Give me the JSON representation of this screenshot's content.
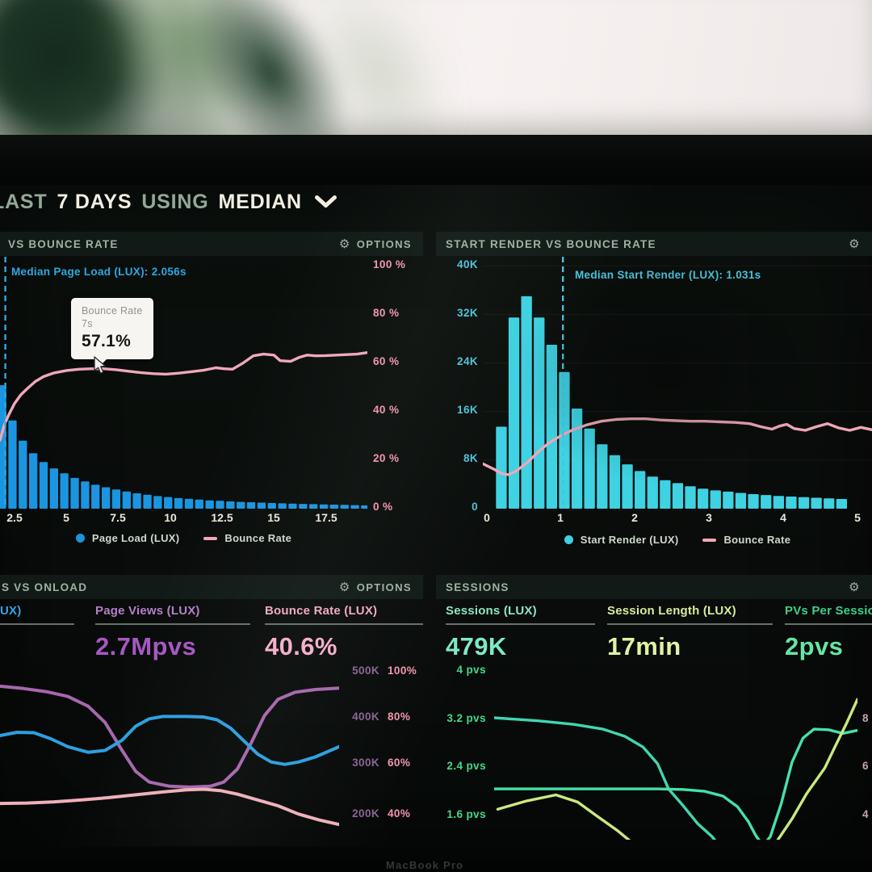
{
  "toolbar": {
    "prefix": "LAST",
    "range": "7 DAYS",
    "using": "USING",
    "metric": "MEDIAN"
  },
  "device": {
    "brand": "MacBook Pro"
  },
  "colors": {
    "screen_bg": "#0a0e0c",
    "strip_bg": "#121a17",
    "sage": "#9db2a3",
    "cream": "#f2eee2",
    "blue_bars": "#1b95e0",
    "cyan_bars": "#3ed2e2",
    "pink_line": "#f0a8ba",
    "blue_annotation": "#2ea7e0",
    "cyan_annotation": "#49c4dc",
    "blue_tab": "#35a3e8",
    "purple_label": "#b57fca",
    "purple_value": "#a757c4",
    "pink_label": "#f3a8c2",
    "pink_value": "#f6aecb",
    "mint_label": "#8de5c2",
    "mint_value": "#7fe9c4",
    "lime_label": "#d6eb9e",
    "lime_value": "#e3f2a4",
    "green_label": "#3ecf8a",
    "green_value": "#66e5a3",
    "pink_axis": "#f295ae",
    "cyan_axis": "#4fc3d8",
    "purple_axis": "#8a6596",
    "green_axis": "#45d988",
    "tick": "#ece7da",
    "legend_text": "#cfd8cf",
    "partial_axis": "#caa0a8"
  },
  "panels": {
    "page_load": {
      "title": "VS BOUNCE RATE",
      "options": "OPTIONS",
      "median_annotation": "Median Page Load (LUX): 2.056s",
      "tooltip": {
        "label": "Bounce Rate",
        "sub": "7s",
        "value": "57.1%"
      },
      "y_right": [
        "100 %",
        "80 %",
        "60 %",
        "40 %",
        "20 %",
        "0 %"
      ],
      "x_ticks": [
        "2.5",
        "5",
        "7.5",
        "10",
        "12.5",
        "15",
        "17.5"
      ],
      "legend": [
        {
          "label": "Page Load (LUX)",
          "color": "#1b95e0"
        },
        {
          "label": "Bounce Rate",
          "color": "#f0a8ba"
        }
      ]
    },
    "start_render": {
      "title": "START RENDER VS BOUNCE RATE",
      "median_annotation": "Median Start Render (LUX): 1.031s",
      "y_left": [
        "40K",
        "32K",
        "24K",
        "16K",
        "8K",
        "0"
      ],
      "x_ticks": [
        "0",
        "1",
        "2",
        "3",
        "4",
        "5"
      ],
      "legend": [
        {
          "label": "Start Render (LUX)",
          "color": "#3ed2e2"
        },
        {
          "label": "Bounce Rate",
          "color": "#efa7b8"
        }
      ]
    },
    "onload": {
      "title": "S VS ONLOAD",
      "options": "OPTIONS",
      "stats": [
        {
          "label": "UX)",
          "value": ""
        },
        {
          "label": "Page Views (LUX)",
          "value": "2.7Mpvs"
        },
        {
          "label": "Bounce Rate (LUX)",
          "value": "40.6%"
        }
      ],
      "y_left": [
        "500K",
        "400K",
        "300K",
        "200K"
      ],
      "y_right": [
        "100%",
        "80%",
        "60%",
        "40%"
      ]
    },
    "sessions": {
      "title": "SESSIONS",
      "stats": [
        {
          "label": "Sessions (LUX)",
          "value": "479K"
        },
        {
          "label": "Session Length (LUX)",
          "value": "17min"
        },
        {
          "label": "PVs Per Sessio",
          "value": "2pvs"
        }
      ],
      "y_left": [
        "4 pvs",
        "3.2 pvs",
        "2.4 pvs",
        "1.6 pvs"
      ],
      "y_right_partial": [
        "8",
        "6",
        "4"
      ]
    }
  },
  "chart_data": [
    {
      "id": "page-load-hist",
      "type": "bar+line",
      "title": "VS BOUNCE RATE",
      "x_range": [
        1.8,
        19.5
      ],
      "x_ticks": [
        2.5,
        5,
        7.5,
        10,
        12.5,
        15,
        17.5
      ],
      "bars": {
        "name": "Page Load (LUX)",
        "color": "#1b95e0",
        "x_start": 1.9,
        "x_step": 0.5,
        "bar_width": 0.4,
        "y_range": [
          0,
          1
        ],
        "values": [
          0.49,
          0.35,
          0.27,
          0.22,
          0.185,
          0.16,
          0.14,
          0.122,
          0.108,
          0.095,
          0.085,
          0.076,
          0.068,
          0.061,
          0.055,
          0.05,
          0.046,
          0.042,
          0.039,
          0.036,
          0.033,
          0.031,
          0.029,
          0.027,
          0.0255,
          0.024,
          0.0225,
          0.021,
          0.02,
          0.019,
          0.018,
          0.017,
          0.016,
          0.015,
          0.014,
          0.013
        ]
      },
      "lines": [
        {
          "name": "Bounce Rate",
          "color": "#f0a8ba",
          "width": 3.4,
          "y_range": [
            0,
            103
          ],
          "unit": "%",
          "points": [
            [
              1.8,
              28
            ],
            [
              2.0,
              34
            ],
            [
              2.2,
              38
            ],
            [
              2.5,
              43
            ],
            [
              2.8,
              46.5
            ],
            [
              3.1,
              49
            ],
            [
              3.5,
              52
            ],
            [
              3.9,
              54
            ],
            [
              4.4,
              55.5
            ],
            [
              5,
              56.5
            ],
            [
              5.6,
              57
            ],
            [
              6.2,
              57.2
            ],
            [
              6.8,
              57.2
            ],
            [
              7.4,
              56.8
            ],
            [
              8,
              56.2
            ],
            [
              8.6,
              55.6
            ],
            [
              9.2,
              55.2
            ],
            [
              9.8,
              55
            ],
            [
              10.4,
              55.4
            ],
            [
              11,
              56
            ],
            [
              11.6,
              56.6
            ],
            [
              12.2,
              57.6
            ],
            [
              12.6,
              57.2
            ],
            [
              13,
              57
            ],
            [
              13.5,
              59.5
            ],
            [
              14,
              62.5
            ],
            [
              14.5,
              63.2
            ],
            [
              15,
              62.8
            ],
            [
              15.3,
              60.5
            ],
            [
              15.8,
              60.2
            ],
            [
              16.2,
              61.8
            ],
            [
              16.6,
              62.8
            ],
            [
              17,
              62.5
            ],
            [
              17.5,
              62.6
            ],
            [
              18,
              62.8
            ],
            [
              18.5,
              63
            ],
            [
              19,
              63.2
            ],
            [
              19.5,
              63.8
            ]
          ]
        }
      ],
      "vline": {
        "x": 2.056,
        "color": "#2ea7e0"
      },
      "tooltip_point": {
        "x_seconds": 7,
        "bounce_rate_pct": 57.1
      }
    },
    {
      "id": "start-render-hist",
      "type": "bar+line",
      "title": "START RENDER VS BOUNCE RATE",
      "x_range": [
        -0.05,
        5.2
      ],
      "x_ticks": [
        0,
        1,
        2,
        3,
        4,
        5
      ],
      "hgrid": {
        "values": [
          8,
          16,
          24,
          32,
          40
        ],
        "y_range": [
          0,
          41.5
        ],
        "color": "rgba(160,185,175,0.08)"
      },
      "bars": {
        "name": "Start Render (LUX)",
        "color": "#3ed2e2",
        "x_start": 0.2,
        "x_step": 0.17,
        "bar_width": 0.145,
        "y_range": [
          0,
          41.5
        ],
        "unit": "K sessions",
        "values": [
          13.5,
          31.5,
          35,
          31.5,
          27,
          22.5,
          16.5,
          13.2,
          10.6,
          8.8,
          7.3,
          6.2,
          5.3,
          4.7,
          4.2,
          3.7,
          3.3,
          3.0,
          2.8,
          2.6,
          2.4,
          2.25,
          2.1,
          2.0,
          1.9,
          1.8,
          1.7,
          1.6
        ]
      },
      "lines": [
        {
          "name": "Bounce Rate",
          "color": "#efa7b8",
          "width": 3.4,
          "y_range": [
            0,
            41.5
          ],
          "points": [
            [
              -0.05,
              7.4
            ],
            [
              0.1,
              6.5
            ],
            [
              0.2,
              5.8
            ],
            [
              0.3,
              5.6
            ],
            [
              0.4,
              6.2
            ],
            [
              0.55,
              7.6
            ],
            [
              0.7,
              9.4
            ],
            [
              0.85,
              10.9
            ],
            [
              1.0,
              12.0
            ],
            [
              1.15,
              12.9
            ],
            [
              1.35,
              13.8
            ],
            [
              1.55,
              14.4
            ],
            [
              1.75,
              14.7
            ],
            [
              1.95,
              14.8
            ],
            [
              2.15,
              14.8
            ],
            [
              2.35,
              14.6
            ],
            [
              2.55,
              14.5
            ],
            [
              2.75,
              14.4
            ],
            [
              2.95,
              14.4
            ],
            [
              3.15,
              14.3
            ],
            [
              3.35,
              14.2
            ],
            [
              3.55,
              14.0
            ],
            [
              3.7,
              13.5
            ],
            [
              3.85,
              13.1
            ],
            [
              3.95,
              13.6
            ],
            [
              4.05,
              13.9
            ],
            [
              4.15,
              13.2
            ],
            [
              4.3,
              12.9
            ],
            [
              4.45,
              13.5
            ],
            [
              4.6,
              14.0
            ],
            [
              4.75,
              13.3
            ],
            [
              4.9,
              12.9
            ],
            [
              5.05,
              13.4
            ],
            [
              5.2,
              13.0
            ]
          ]
        }
      ],
      "vline": {
        "x": 1.031,
        "color": "#49c4dc"
      }
    },
    {
      "id": "onload-lines",
      "type": "line",
      "title": "S VS ONLOAD",
      "x_range": [
        0,
        1
      ],
      "lines": [
        {
          "name": "Page Views (LUX)",
          "color": "#a767ad",
          "width": 4,
          "y_range": [
            138,
            520
          ],
          "unit": "K",
          "points": [
            [
              0,
              468
            ],
            [
              0.07,
              463
            ],
            [
              0.14,
              456
            ],
            [
              0.2,
              446
            ],
            [
              0.26,
              425
            ],
            [
              0.31,
              390
            ],
            [
              0.36,
              330
            ],
            [
              0.4,
              285
            ],
            [
              0.44,
              262
            ],
            [
              0.5,
              253
            ],
            [
              0.56,
              251
            ],
            [
              0.62,
              253
            ],
            [
              0.66,
              262
            ],
            [
              0.7,
              290
            ],
            [
              0.74,
              345
            ],
            [
              0.78,
              405
            ],
            [
              0.82,
              440
            ],
            [
              0.87,
              455
            ],
            [
              0.93,
              461
            ],
            [
              1,
              464
            ]
          ]
        },
        {
          "name": "Onload (LUX)",
          "color": "#2d9fe0",
          "width": 4,
          "y_range": [
            138,
            520
          ],
          "unit": "K",
          "points": [
            [
              0,
              362
            ],
            [
              0.05,
              369
            ],
            [
              0.1,
              368
            ],
            [
              0.15,
              355
            ],
            [
              0.2,
              338
            ],
            [
              0.26,
              326
            ],
            [
              0.31,
              330
            ],
            [
              0.36,
              352
            ],
            [
              0.4,
              382
            ],
            [
              0.44,
              398
            ],
            [
              0.48,
              403
            ],
            [
              0.55,
              403
            ],
            [
              0.6,
              402
            ],
            [
              0.64,
              396
            ],
            [
              0.68,
              378
            ],
            [
              0.72,
              350
            ],
            [
              0.76,
              322
            ],
            [
              0.8,
              305
            ],
            [
              0.84,
              300
            ],
            [
              0.88,
              305
            ],
            [
              0.93,
              316
            ],
            [
              1,
              338
            ]
          ]
        },
        {
          "name": "Bounce Rate (LUX)",
          "color": "#efb0ba",
          "width": 4,
          "y_range": [
            28,
            104
          ],
          "unit": "%",
          "points": [
            [
              0,
              43.5
            ],
            [
              0.08,
              43.7
            ],
            [
              0.16,
              44.2
            ],
            [
              0.24,
              45
            ],
            [
              0.32,
              46
            ],
            [
              0.4,
              47.2
            ],
            [
              0.48,
              48.4
            ],
            [
              0.55,
              49.3
            ],
            [
              0.6,
              49.6
            ],
            [
              0.65,
              49
            ],
            [
              0.7,
              47.5
            ],
            [
              0.76,
              45
            ],
            [
              0.82,
              42.5
            ],
            [
              0.88,
              39
            ],
            [
              0.94,
              36.5
            ],
            [
              1,
              34.5
            ]
          ]
        }
      ]
    },
    {
      "id": "sessions-lines",
      "type": "line",
      "title": "SESSIONS",
      "x_range": [
        0,
        1
      ],
      "lines": [
        {
          "name": "PVs Per Session A",
          "color": "#3fd7b0",
          "width": 3.4,
          "y_range": [
            1.15,
            4.15
          ],
          "unit": "pvs",
          "points": [
            [
              0,
              3.19
            ],
            [
              0.12,
              3.14
            ],
            [
              0.22,
              3.08
            ],
            [
              0.3,
              3.0
            ],
            [
              0.36,
              2.88
            ],
            [
              0.41,
              2.7
            ],
            [
              0.45,
              2.42
            ],
            [
              0.48,
              2.0
            ],
            [
              0.52,
              1.72
            ],
            [
              0.56,
              1.42
            ],
            [
              0.6,
              1.2
            ],
            [
              0.62,
              1.05
            ]
          ]
        },
        {
          "name": "PVs Per Session B",
          "color": "#45e2a8",
          "width": 3.4,
          "y_range": [
            1.15,
            4.15
          ],
          "unit": "pvs",
          "points": [
            [
              0,
              2.0
            ],
            [
              0.15,
              2.0
            ],
            [
              0.3,
              2.0
            ],
            [
              0.45,
              2.0
            ],
            [
              0.52,
              1.99
            ],
            [
              0.58,
              1.96
            ],
            [
              0.63,
              1.88
            ],
            [
              0.67,
              1.7
            ],
            [
              0.7,
              1.45
            ],
            [
              0.72,
              1.22
            ],
            [
              0.74,
              1.05
            ],
            [
              0.76,
              1.2
            ],
            [
              0.79,
              1.75
            ],
            [
              0.82,
              2.45
            ],
            [
              0.85,
              2.85
            ],
            [
              0.88,
              3.0
            ],
            [
              0.92,
              2.99
            ],
            [
              0.96,
              2.93
            ],
            [
              1,
              2.98
            ]
          ]
        },
        {
          "name": "PVs Per Session C",
          "color": "#cbe97f",
          "width": 3.4,
          "y_range": [
            1.15,
            4.15
          ],
          "unit": "pvs",
          "points": [
            [
              0.01,
              1.66
            ],
            [
              0.09,
              1.8
            ],
            [
              0.17,
              1.9
            ],
            [
              0.23,
              1.78
            ],
            [
              0.28,
              1.56
            ],
            [
              0.34,
              1.3
            ],
            [
              0.39,
              1.05
            ],
            [
              0.5,
              0.88
            ],
            [
              0.65,
              0.88
            ],
            [
              0.77,
              1.05
            ],
            [
              0.82,
              1.5
            ],
            [
              0.86,
              1.92
            ],
            [
              0.91,
              2.35
            ],
            [
              0.94,
              2.73
            ],
            [
              0.97,
              3.1
            ],
            [
              1,
              3.5
            ]
          ]
        }
      ]
    }
  ]
}
